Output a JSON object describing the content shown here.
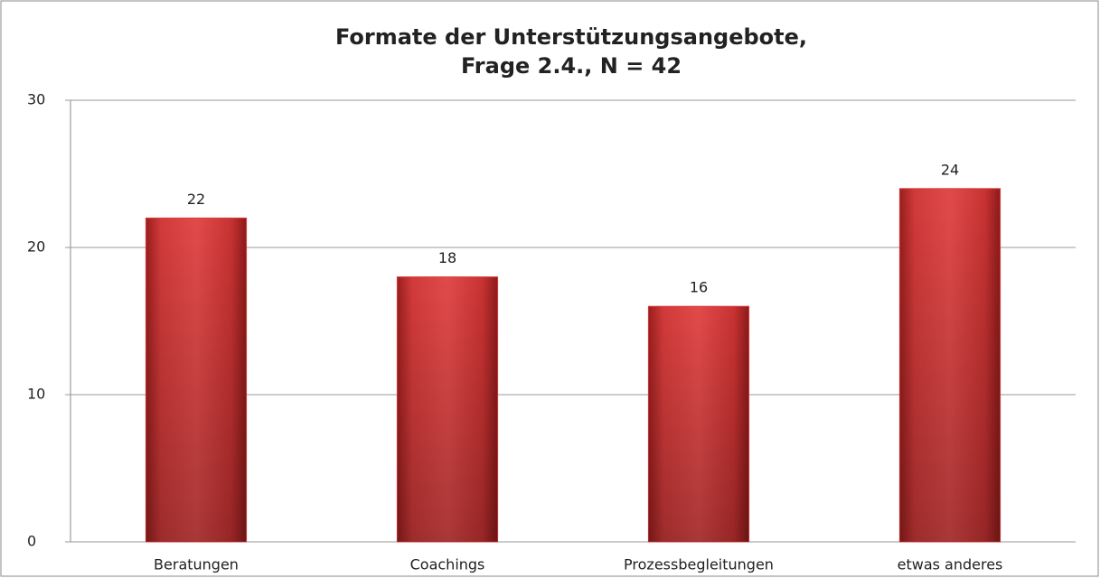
{
  "chart_data": {
    "type": "bar",
    "title": [
      "Formate der Unterstützungsangebote,",
      "Frage 2.4., N = 42"
    ],
    "categories": [
      "Beratungen",
      "Coachings",
      "Prozessbegleitungen",
      "etwas anderes"
    ],
    "values": [
      22,
      18,
      16,
      24
    ],
    "color": "#d63c3c",
    "ylim": [
      0,
      30
    ],
    "yticks": [
      0,
      10,
      20,
      30
    ],
    "grid": true
  }
}
